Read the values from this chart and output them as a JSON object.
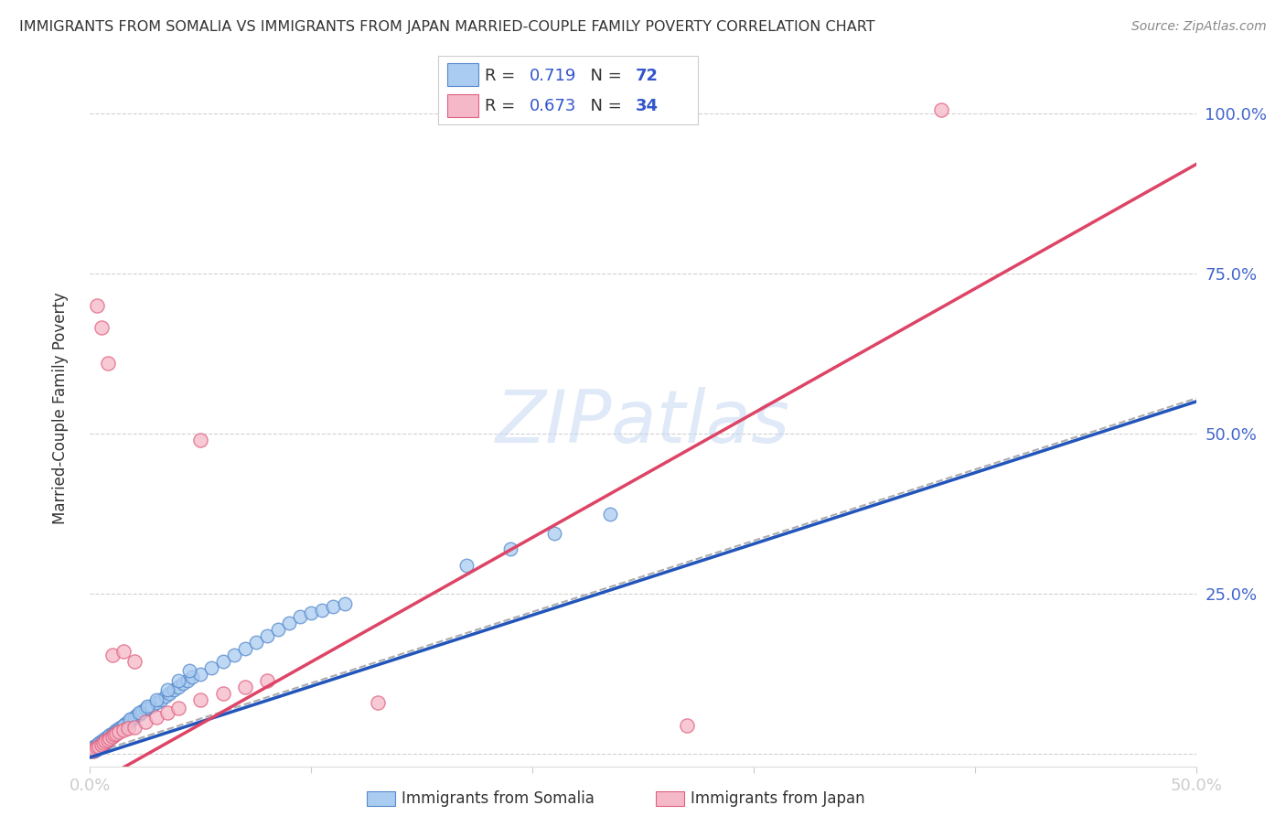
{
  "title": "IMMIGRANTS FROM SOMALIA VS IMMIGRANTS FROM JAPAN MARRIED-COUPLE FAMILY POVERTY CORRELATION CHART",
  "source": "Source: ZipAtlas.com",
  "ylabel": "Married-Couple Family Poverty",
  "xlim": [
    0.0,
    0.5
  ],
  "ylim": [
    -0.02,
    1.1
  ],
  "watermark": "ZIPatlas",
  "somalia_color": "#aaccf0",
  "japan_color": "#f5b8c8",
  "somalia_edge_color": "#5588cc",
  "japan_edge_color": "#e06080",
  "somalia_line_color": "#2255bb",
  "japan_line_color": "#dd4466",
  "background_color": "#ffffff",
  "grid_color": "#cccccc",
  "R_somalia": "0.719",
  "N_somalia": "72",
  "R_japan": "0.673",
  "N_japan": "34",
  "text_color_label": "#333333",
  "text_color_value": "#3355cc",
  "axis_tick_color": "#4466cc",
  "somalia_x": [
    0.001,
    0.002,
    0.003,
    0.004,
    0.005,
    0.006,
    0.007,
    0.008,
    0.009,
    0.01,
    0.011,
    0.012,
    0.013,
    0.014,
    0.015,
    0.016,
    0.017,
    0.018,
    0.019,
    0.02,
    0.021,
    0.022,
    0.023,
    0.024,
    0.025,
    0.026,
    0.028,
    0.03,
    0.032,
    0.034,
    0.036,
    0.038,
    0.04,
    0.042,
    0.044,
    0.046,
    0.05,
    0.055,
    0.06,
    0.065,
    0.07,
    0.075,
    0.08,
    0.085,
    0.09,
    0.095,
    0.1,
    0.105,
    0.11,
    0.115,
    0.002,
    0.003,
    0.004,
    0.005,
    0.006,
    0.007,
    0.008,
    0.009,
    0.01,
    0.012,
    0.015,
    0.018,
    0.022,
    0.026,
    0.03,
    0.035,
    0.04,
    0.045,
    0.17,
    0.19,
    0.21,
    0.235
  ],
  "somalia_y": [
    0.01,
    0.012,
    0.015,
    0.018,
    0.02,
    0.022,
    0.025,
    0.028,
    0.03,
    0.032,
    0.035,
    0.038,
    0.04,
    0.042,
    0.045,
    0.048,
    0.05,
    0.052,
    0.055,
    0.058,
    0.06,
    0.062,
    0.065,
    0.068,
    0.07,
    0.072,
    0.075,
    0.08,
    0.085,
    0.09,
    0.095,
    0.1,
    0.105,
    0.11,
    0.115,
    0.12,
    0.125,
    0.135,
    0.145,
    0.155,
    0.165,
    0.175,
    0.185,
    0.195,
    0.205,
    0.215,
    0.22,
    0.225,
    0.23,
    0.235,
    0.005,
    0.008,
    0.01,
    0.012,
    0.015,
    0.018,
    0.022,
    0.025,
    0.028,
    0.035,
    0.045,
    0.055,
    0.065,
    0.075,
    0.085,
    0.1,
    0.115,
    0.13,
    0.295,
    0.32,
    0.345,
    0.375
  ],
  "japan_x": [
    0.001,
    0.002,
    0.003,
    0.004,
    0.005,
    0.006,
    0.007,
    0.008,
    0.009,
    0.01,
    0.011,
    0.012,
    0.013,
    0.015,
    0.017,
    0.02,
    0.025,
    0.03,
    0.035,
    0.04,
    0.05,
    0.06,
    0.07,
    0.08,
    0.003,
    0.005,
    0.008,
    0.01,
    0.015,
    0.02,
    0.05,
    0.13,
    0.27,
    0.385
  ],
  "japan_y": [
    0.005,
    0.008,
    0.01,
    0.012,
    0.015,
    0.018,
    0.02,
    0.022,
    0.025,
    0.028,
    0.03,
    0.032,
    0.035,
    0.038,
    0.04,
    0.042,
    0.05,
    0.058,
    0.065,
    0.072,
    0.085,
    0.095,
    0.105,
    0.115,
    0.7,
    0.665,
    0.61,
    0.155,
    0.16,
    0.145,
    0.49,
    0.08,
    0.045,
    1.005
  ],
  "somalia_reg": [
    -0.005,
    0.55
  ],
  "japan_reg": [
    -0.05,
    0.92
  ],
  "diag_reg": [
    0.0,
    0.555
  ]
}
